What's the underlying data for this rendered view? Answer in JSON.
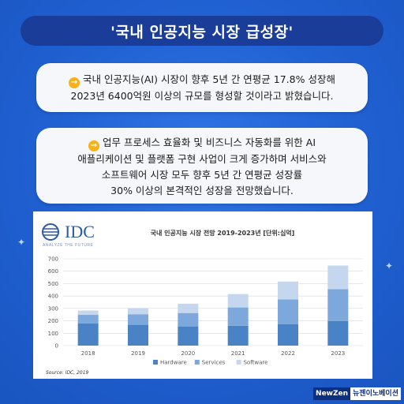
{
  "title": "'국내 인공지능 시장 급성장'",
  "card1": {
    "lines": [
      "국내 인공지능(AI) 시장이 향후 5년 간 연평균 17.8% 성장해",
      "2023년 6400억원 이상의 규모를 형성할 것이라고 밝혔습니다."
    ]
  },
  "card2": {
    "lines": [
      "업무 프로세스 효율화 및 비즈니스 자동화를 위한 AI",
      "애플리케이션 및 플랫폼 구현 사업이 크게 증가하며 서비스와",
      "소프트웨어 시장 모두 향후 5년 간 연평균 성장률",
      "30% 이상의 본격적인 성장을 전망했습니다."
    ]
  },
  "logo": {
    "name": "IDC",
    "tagline": "ANALYZE THE FUTURE"
  },
  "brand": {
    "part1": "NewZen",
    "part2": "뉴젠이노베이션"
  },
  "chart_data": {
    "type": "bar",
    "stacked": true,
    "title": "국내 인공지능 시장 전망 2019-2023년 [단위:십억]",
    "categories": [
      "2018",
      "2019",
      "2020",
      "2021",
      "2022",
      "2023"
    ],
    "series": [
      {
        "name": "Hardware",
        "values": [
          180,
          168,
          155,
          160,
          172,
          198
        ],
        "color": "#4a82c6"
      },
      {
        "name": "Services",
        "values": [
          68,
          85,
          108,
          148,
          200,
          258
        ],
        "color": "#7ca8dc"
      },
      {
        "name": "Software",
        "values": [
          35,
          50,
          75,
          108,
          145,
          190
        ],
        "color": "#c4d7ef"
      }
    ],
    "y_ticks": [
      0,
      100,
      200,
      300,
      400,
      500,
      600,
      700
    ],
    "ylim": [
      0,
      700
    ],
    "grid": true,
    "legend": "bottom",
    "source": "Source: IDC, 2019"
  }
}
